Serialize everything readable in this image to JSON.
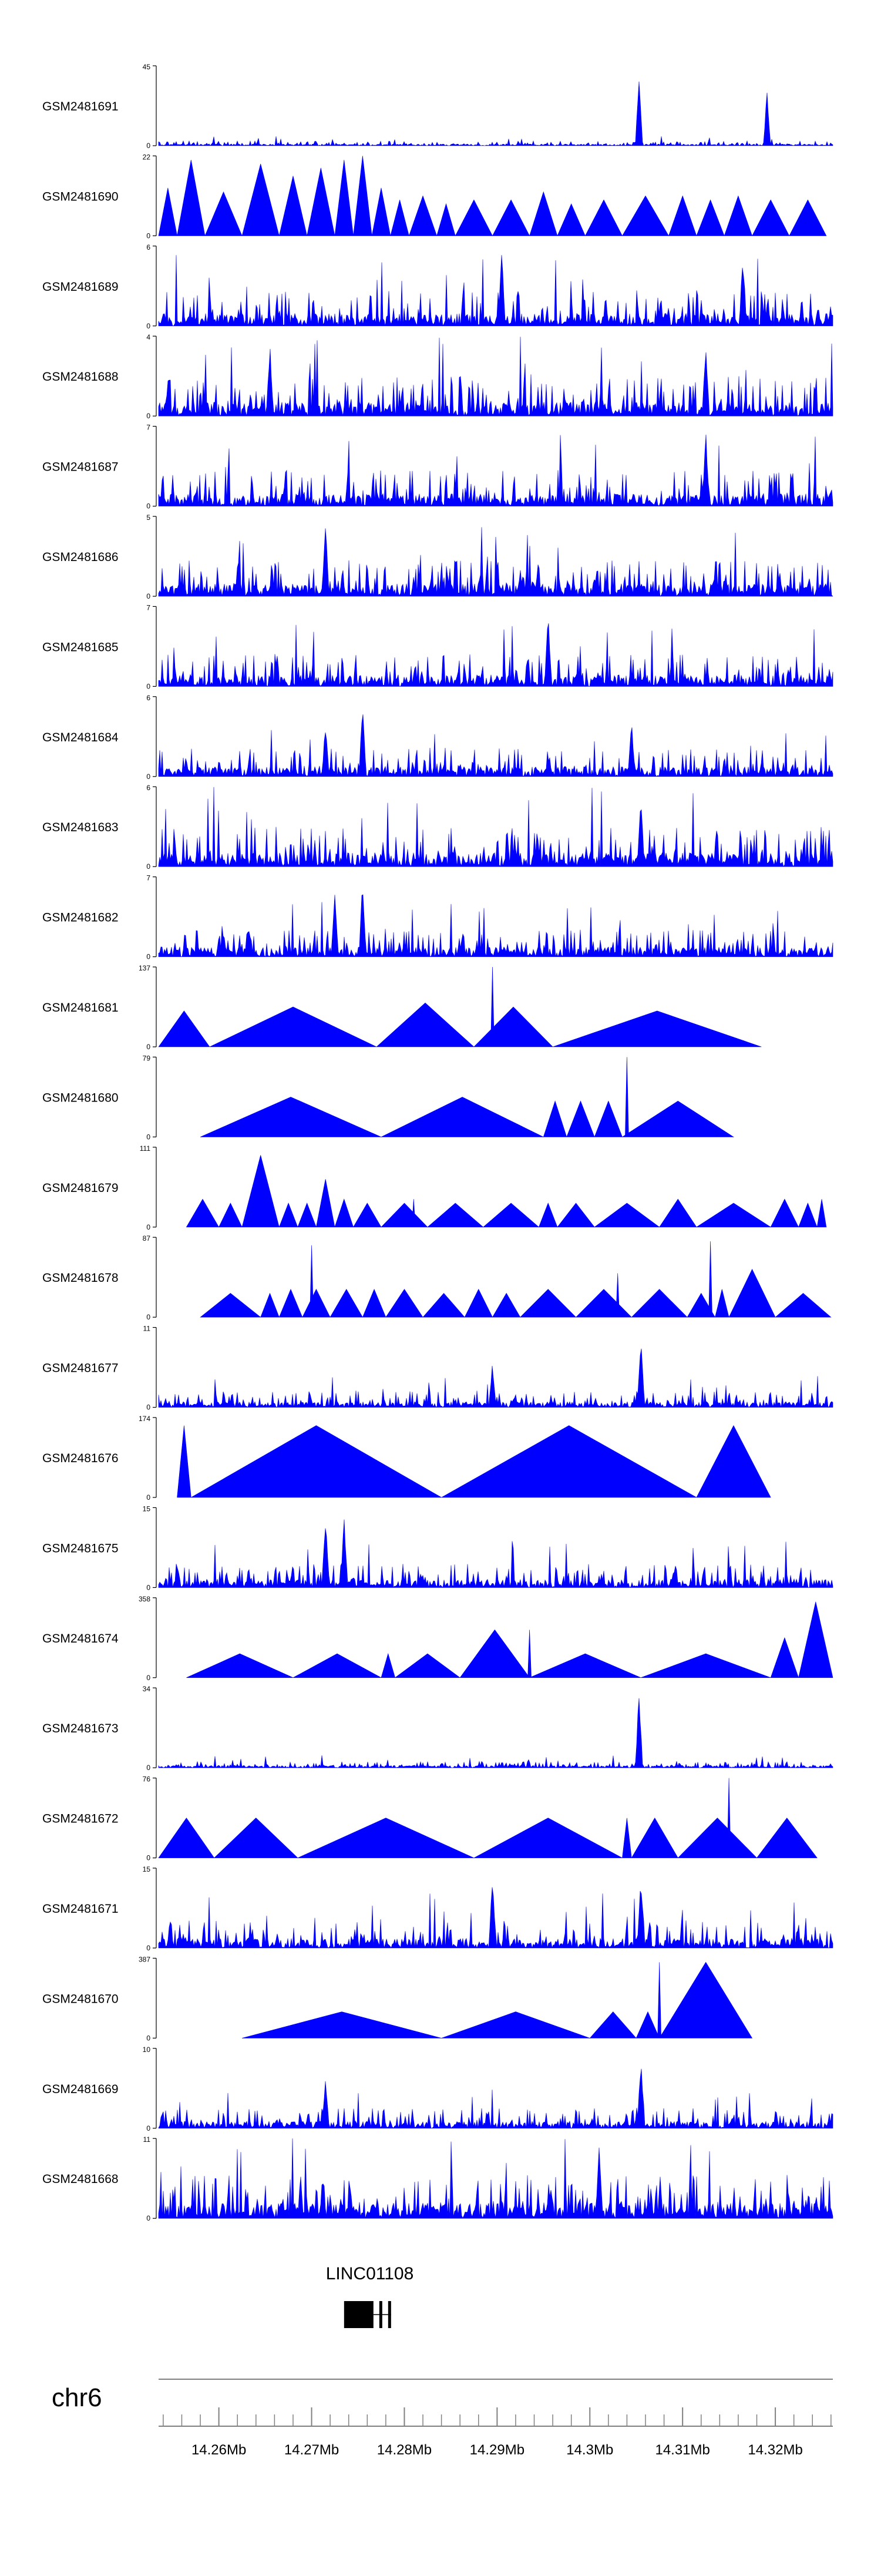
{
  "colors": {
    "signal": "#0000ff",
    "axis": "#000000",
    "ruler": "#808080",
    "gene": "#000000"
  },
  "chart_data": {
    "type": "area",
    "title": "",
    "xlabel": "",
    "ylabel": "",
    "xlim_mb": [
      14.2535,
      14.3262
    ],
    "chromosome": "chr6",
    "gene": {
      "name": "LINC01108",
      "start_mb": 14.2735,
      "end_mb": 14.2765
    },
    "x_ticks": [
      "14.26Mb",
      "14.27Mb",
      "14.28Mb",
      "14.29Mb",
      "14.3Mb",
      "14.31Mb",
      "14.32Mb"
    ],
    "x_tick_values": [
      14.26,
      14.27,
      14.28,
      14.29,
      14.3,
      14.31,
      14.32
    ],
    "tracks": [
      {
        "name": "GSM2481691",
        "ymax": 45,
        "ymax_label": "45",
        "ymin_label": "0",
        "style": "spiky",
        "base": 0.06,
        "peaks": [
          [
            14.3053,
            1.0
          ],
          [
            14.3191,
            0.7
          ]
        ]
      },
      {
        "name": "GSM2481690",
        "ymax": 22,
        "ymax_label": "22",
        "ymin_label": "0",
        "style": "triangles",
        "seg": [
          14.2535,
          14.2555,
          14.2585,
          14.2625,
          14.2665,
          14.2695,
          14.2725,
          14.2745,
          14.2765,
          14.2785,
          14.2805,
          14.2835,
          14.2855,
          14.2895,
          14.2935,
          14.2965,
          14.2995,
          14.3035,
          14.3085,
          14.3115,
          14.3145,
          14.3175,
          14.3215,
          14.3255
        ],
        "heights": [
          0.6,
          0.95,
          0.55,
          0.9,
          0.75,
          0.85,
          0.95,
          1.0,
          0.6,
          0.45,
          0.5,
          0.4,
          0.45,
          0.45,
          0.55,
          0.4,
          0.45,
          0.5,
          0.5,
          0.45,
          0.5,
          0.45,
          0.45
        ]
      },
      {
        "name": "GSM2481689",
        "ymax": 6,
        "ymax_label": "6",
        "ymin_label": "0",
        "style": "spiky",
        "base": 0.45,
        "peaks": [
          [
            14.2905,
            0.95
          ],
          [
            14.3165,
            0.95
          ]
        ]
      },
      {
        "name": "GSM2481688",
        "ymax": 4,
        "ymax_label": "4",
        "ymin_label": "0",
        "style": "spiky",
        "base": 0.5,
        "peaks": [
          [
            14.2655,
            0.95
          ],
          [
            14.3125,
            0.95
          ]
        ]
      },
      {
        "name": "GSM2481687",
        "ymax": 7,
        "ymax_label": "7",
        "ymin_label": "0",
        "style": "spiky",
        "base": 0.45,
        "peaks": [
          [
            14.3125,
            0.95
          ]
        ]
      },
      {
        "name": "GSM2481686",
        "ymax": 5,
        "ymax_label": "5",
        "ymin_label": "0",
        "style": "spiky",
        "base": 0.45,
        "peaks": [
          [
            14.2715,
            0.95
          ]
        ]
      },
      {
        "name": "GSM2481685",
        "ymax": 7,
        "ymax_label": "7",
        "ymin_label": "0",
        "style": "spiky",
        "base": 0.4,
        "peaks": [
          [
            14.2955,
            0.95
          ]
        ]
      },
      {
        "name": "GSM2481684",
        "ymax": 6,
        "ymax_label": "6",
        "ymin_label": "0",
        "style": "spiky",
        "base": 0.35,
        "peaks": [
          [
            14.2755,
            1.0
          ],
          [
            14.2715,
            0.7
          ],
          [
            14.3045,
            0.7
          ]
        ]
      },
      {
        "name": "GSM2481683",
        "ymax": 6,
        "ymax_label": "6",
        "ymin_label": "0",
        "style": "spiky",
        "base": 0.5,
        "peaks": [
          [
            14.3055,
            0.9
          ]
        ]
      },
      {
        "name": "GSM2481682",
        "ymax": 7,
        "ymax_label": "7",
        "ymin_label": "0",
        "style": "spiky",
        "base": 0.35,
        "peaks": [
          [
            14.2755,
            1.0
          ],
          [
            14.2725,
            0.8
          ]
        ]
      },
      {
        "name": "GSM2481681",
        "ymax": 137,
        "ymax_label": "137",
        "ymin_label": "0",
        "style": "triangles",
        "seg": [
          14.2535,
          14.259,
          14.277,
          14.2875,
          14.296,
          14.3185
        ],
        "heights": [
          0.45,
          0.5,
          0.55,
          0.5,
          0.45
        ],
        "spikes": [
          [
            14.2895,
            1.0
          ]
        ]
      },
      {
        "name": "GSM2481680",
        "ymax": 79,
        "ymax_label": "79",
        "ymin_label": "0",
        "style": "triangles",
        "seg": [
          14.258,
          14.2775,
          14.295,
          14.2975,
          14.3005,
          14.3035,
          14.3155
        ],
        "heights": [
          0.5,
          0.5,
          0.45,
          0.45,
          0.45,
          0.45
        ],
        "spikes": [
          [
            14.304,
            1.0
          ]
        ]
      },
      {
        "name": "GSM2481679",
        "ymax": 111,
        "ymax_label": "111",
        "ymin_label": "0",
        "style": "triangles",
        "seg": [
          14.2565,
          14.26,
          14.2625,
          14.2665,
          14.2685,
          14.2705,
          14.2725,
          14.2745,
          14.2775,
          14.2825,
          14.2885,
          14.2945,
          14.2965,
          14.3005,
          14.3075,
          14.3115,
          14.3195,
          14.3225,
          14.3245,
          14.3255
        ],
        "heights": [
          0.35,
          0.3,
          0.9,
          0.3,
          0.3,
          0.6,
          0.35,
          0.3,
          0.3,
          0.3,
          0.3,
          0.3,
          0.3,
          0.3,
          0.35,
          0.3,
          0.35,
          0.3,
          0.35
        ],
        "spikes": [
          [
            14.281,
            0.35
          ]
        ]
      },
      {
        "name": "GSM2481678",
        "ymax": 87,
        "ymax_label": "87",
        "ymin_label": "0",
        "style": "triangles",
        "seg": [
          14.258,
          14.2645,
          14.2665,
          14.269,
          14.272,
          14.2755,
          14.278,
          14.282,
          14.2865,
          14.2895,
          14.2925,
          14.2985,
          14.3045,
          14.3105,
          14.3135,
          14.315,
          14.32,
          14.326
        ],
        "heights": [
          0.3,
          0.3,
          0.35,
          0.35,
          0.35,
          0.35,
          0.35,
          0.3,
          0.35,
          0.3,
          0.35,
          0.35,
          0.35,
          0.3,
          0.35,
          0.6,
          0.3
        ],
        "spikes": [
          [
            14.27,
            0.9
          ],
          [
            14.313,
            0.95
          ],
          [
            14.303,
            0.55
          ]
        ]
      },
      {
        "name": "GSM2481677",
        "ymax": 11,
        "ymax_label": "11",
        "ymin_label": "0",
        "style": "spiky",
        "base": 0.2,
        "peaks": [
          [
            14.3055,
            0.95
          ],
          [
            14.2895,
            0.6
          ]
        ]
      },
      {
        "name": "GSM2481676",
        "ymax": 174,
        "ymax_label": "174",
        "ymin_label": "0",
        "style": "triangles",
        "seg": [
          14.2555,
          14.257,
          14.284,
          14.3115,
          14.3195
        ],
        "heights": [
          0.9,
          0.9,
          0.9,
          0.9
        ]
      },
      {
        "name": "GSM2481675",
        "ymax": 15,
        "ymax_label": "15",
        "ymin_label": "0",
        "style": "spiky",
        "base": 0.3,
        "peaks": [
          [
            14.2715,
            0.95
          ],
          [
            14.2735,
            0.9
          ]
        ]
      },
      {
        "name": "GSM2481674",
        "ymax": 358,
        "ymax_label": "358",
        "ymin_label": "0",
        "style": "triangles",
        "seg": [
          14.2565,
          14.268,
          14.2775,
          14.279,
          14.286,
          14.2935,
          14.3055,
          14.3195,
          14.3225,
          14.3262
        ],
        "heights": [
          0.3,
          0.3,
          0.3,
          0.3,
          0.6,
          0.3,
          0.3,
          0.5,
          0.95
        ],
        "spikes": [
          [
            14.2935,
            0.6
          ]
        ]
      },
      {
        "name": "GSM2481673",
        "ymax": 34,
        "ymax_label": "34",
        "ymin_label": "0",
        "style": "spiky",
        "base": 0.08,
        "peaks": [
          [
            14.3053,
            1.0
          ]
        ]
      },
      {
        "name": "GSM2481672",
        "ymax": 76,
        "ymax_label": "76",
        "ymin_label": "0",
        "style": "triangles",
        "seg": [
          14.2535,
          14.2595,
          14.2685,
          14.2875,
          14.3035,
          14.3045,
          14.3095,
          14.318,
          14.3245
        ],
        "heights": [
          0.5,
          0.5,
          0.5,
          0.5,
          0.5,
          0.5,
          0.5,
          0.5
        ],
        "spikes": [
          [
            14.315,
            1.0
          ]
        ]
      },
      {
        "name": "GSM2481671",
        "ymax": 15,
        "ymax_label": "15",
        "ymin_label": "0",
        "style": "spiky",
        "base": 0.35,
        "peaks": [
          [
            14.2895,
            1.0
          ],
          [
            14.3055,
            0.95
          ]
        ]
      },
      {
        "name": "GSM2481670",
        "ymax": 387,
        "ymax_label": "387",
        "ymin_label": "0",
        "style": "triangles",
        "seg": [
          14.2625,
          14.284,
          14.3,
          14.305,
          14.3075,
          14.3175
        ],
        "heights": [
          0.33,
          0.33,
          0.33,
          0.33,
          0.95
        ],
        "spikes": [
          [
            14.3075,
            0.95
          ]
        ]
      },
      {
        "name": "GSM2481669",
        "ymax": 10,
        "ymax_label": "10",
        "ymin_label": "0",
        "style": "spiky",
        "base": 0.25,
        "peaks": [
          [
            14.3055,
            0.95
          ],
          [
            14.2715,
            0.7
          ]
        ]
      },
      {
        "name": "GSM2481668",
        "ymax": 11,
        "ymax_label": "11",
        "ymin_label": "0",
        "style": "spiky",
        "base": 0.55,
        "peaks": [
          [
            14.301,
            0.95
          ]
        ]
      }
    ]
  }
}
